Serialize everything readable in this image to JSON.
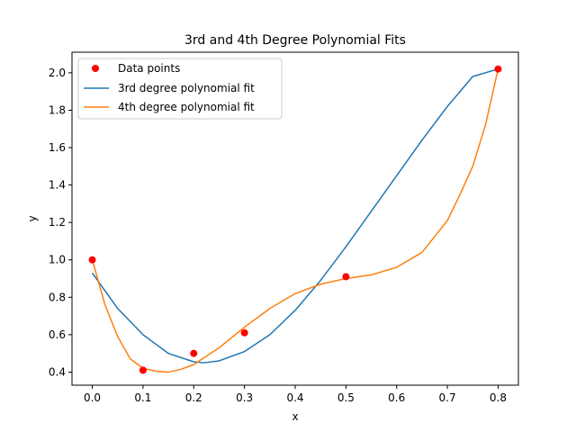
{
  "chart_data": {
    "type": "scatter+line",
    "title": "3rd and 4th Degree Polynomial Fits",
    "xlabel": "x",
    "ylabel": "y",
    "xlim": [
      -0.04,
      0.84
    ],
    "ylim": [
      0.33,
      2.11
    ],
    "xticks": [
      0.0,
      0.1,
      0.2,
      0.3,
      0.4,
      0.5,
      0.6,
      0.7,
      0.8
    ],
    "xtick_labels": [
      "0.0",
      "0.1",
      "0.2",
      "0.3",
      "0.4",
      "0.5",
      "0.6",
      "0.7",
      "0.8"
    ],
    "yticks": [
      0.4,
      0.6,
      0.8,
      1.0,
      1.2,
      1.4,
      1.6,
      1.8,
      2.0
    ],
    "ytick_labels": [
      "0.4",
      "0.6",
      "0.8",
      "1.0",
      "1.2",
      "1.4",
      "1.6",
      "1.8",
      "2.0"
    ],
    "grid": false,
    "legend_position": "upper-left",
    "points": {
      "name": "Data points",
      "color": "#ff0000",
      "x": [
        0.0,
        0.1,
        0.2,
        0.3,
        0.5,
        0.8
      ],
      "y": [
        1.0,
        0.41,
        0.5,
        0.61,
        0.91,
        2.02
      ]
    },
    "series": [
      {
        "name": "3rd degree polynomial fit",
        "color": "#1f77b4",
        "x": [
          0.0,
          0.05,
          0.1,
          0.15,
          0.2,
          0.22,
          0.25,
          0.3,
          0.35,
          0.4,
          0.45,
          0.5,
          0.55,
          0.6,
          0.65,
          0.7,
          0.75,
          0.8
        ],
        "y": [
          0.93,
          0.74,
          0.6,
          0.5,
          0.455,
          0.45,
          0.46,
          0.51,
          0.6,
          0.73,
          0.89,
          1.07,
          1.26,
          1.45,
          1.64,
          1.82,
          1.98,
          2.02
        ]
      },
      {
        "name": "4th degree polynomial fit",
        "color": "#ff7f0e",
        "x": [
          0.0,
          0.025,
          0.05,
          0.075,
          0.1,
          0.125,
          0.15,
          0.175,
          0.2,
          0.25,
          0.3,
          0.35,
          0.4,
          0.45,
          0.5,
          0.55,
          0.6,
          0.65,
          0.7,
          0.725,
          0.75,
          0.775,
          0.8
        ],
        "y": [
          1.0,
          0.76,
          0.59,
          0.47,
          0.42,
          0.405,
          0.4,
          0.415,
          0.44,
          0.53,
          0.64,
          0.74,
          0.82,
          0.87,
          0.9,
          0.92,
          0.96,
          1.04,
          1.21,
          1.35,
          1.5,
          1.72,
          2.02
        ]
      }
    ]
  }
}
